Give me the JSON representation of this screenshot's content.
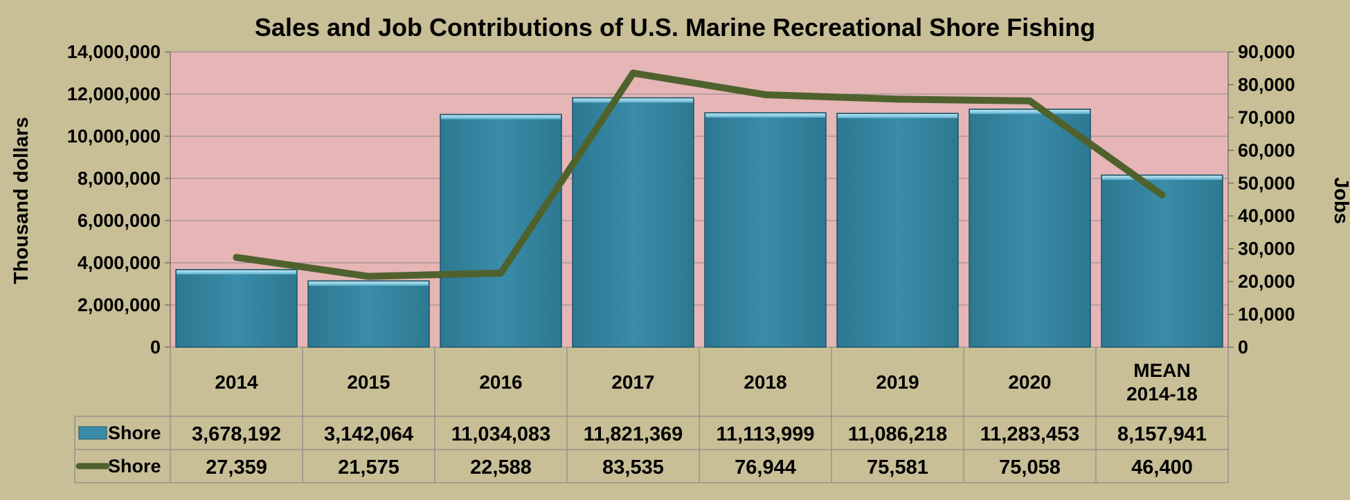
{
  "chart_data": {
    "type": "bar",
    "title": "Sales and Job Contributions of U.S. Marine Recreational Shore Fishing",
    "categories": [
      "2014",
      "2015",
      "2016",
      "2017",
      "2018",
      "2019",
      "2020",
      "MEAN 2014-18"
    ],
    "category_lines": [
      [
        "2014"
      ],
      [
        "2015"
      ],
      [
        "2016"
      ],
      [
        "2017"
      ],
      [
        "2018"
      ],
      [
        "2019"
      ],
      [
        "2020"
      ],
      [
        "MEAN",
        "2014-18"
      ]
    ],
    "ylabel_left": "Thousand dollars",
    "ylabel_right": "Jobs",
    "ylim_left": [
      0,
      14000000
    ],
    "ylim_right": [
      0,
      90000
    ],
    "yticks_left": [
      "0",
      "2,000,000",
      "4,000,000",
      "6,000,000",
      "8,000,000",
      "10,000,000",
      "12,000,000",
      "14,000,000"
    ],
    "yticks_right": [
      "0",
      "10,000",
      "20,000",
      "30,000",
      "40,000",
      "50,000",
      "60,000",
      "70,000",
      "80,000",
      "90,000"
    ],
    "grid": true,
    "legend": "data table",
    "series": [
      {
        "name": "Shore",
        "type": "bar",
        "axis": "left",
        "color": "#3a8ca8",
        "values": [
          3678192,
          3142064,
          11034083,
          11821369,
          11113999,
          11086218,
          11283453,
          8157941
        ],
        "labels": [
          "3,678,192",
          "3,142,064",
          "11,034,083",
          "11,821,369",
          "11,113,999",
          "11,086,218",
          "11,283,453",
          "8,157,941"
        ]
      },
      {
        "name": "Shore",
        "type": "line",
        "axis": "right",
        "color": "#4f622d",
        "values": [
          27359,
          21575,
          22588,
          83535,
          76944,
          75581,
          75058,
          46400
        ],
        "labels": [
          "27,359",
          "21,575",
          "22,588",
          "83,535",
          "76,944",
          "75,581",
          "75,058",
          "46,400"
        ]
      }
    ]
  },
  "colors": {
    "background": "#c8bf97",
    "plot_area": "#e6b5b6",
    "bar": "#3a8ca8",
    "line": "#4f622d",
    "grid": "#8a8a8a"
  }
}
